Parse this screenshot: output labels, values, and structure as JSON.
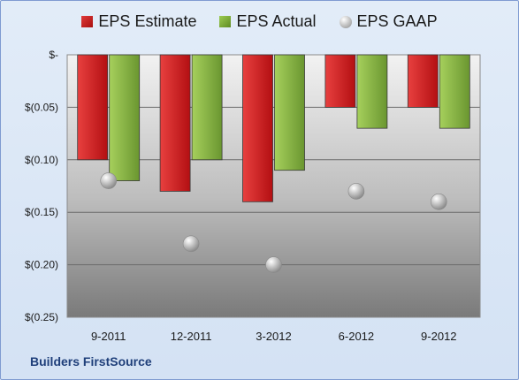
{
  "legend": {
    "estimate": "EPS Estimate",
    "actual": "EPS Actual",
    "gaap": "EPS GAAP"
  },
  "footer": "Builders FirstSource",
  "chart_data": {
    "type": "bar",
    "categories": [
      "9-2011",
      "12-2011",
      "3-2012",
      "6-2012",
      "9-2012"
    ],
    "series": [
      {
        "name": "EPS Estimate",
        "type": "bar",
        "color": "#c0171a",
        "values": [
          -0.1,
          -0.13,
          -0.14,
          -0.05,
          -0.05
        ]
      },
      {
        "name": "EPS Actual",
        "type": "bar",
        "color": "#77a83a",
        "values": [
          -0.12,
          -0.1,
          -0.11,
          -0.07,
          -0.07
        ]
      },
      {
        "name": "EPS GAAP",
        "type": "scatter",
        "color": "#a6a6a6",
        "values": [
          -0.12,
          -0.18,
          -0.2,
          -0.13,
          -0.14
        ]
      }
    ],
    "y_ticks": [
      "$-",
      "$(0.05)",
      "$(0.10)",
      "$(0.15)",
      "$(0.20)",
      "$(0.25)"
    ],
    "y_tick_values": [
      0,
      -0.05,
      -0.1,
      -0.15,
      -0.2,
      -0.25
    ],
    "ylim": [
      -0.25,
      0
    ],
    "grid": true,
    "legend_position": "top"
  }
}
